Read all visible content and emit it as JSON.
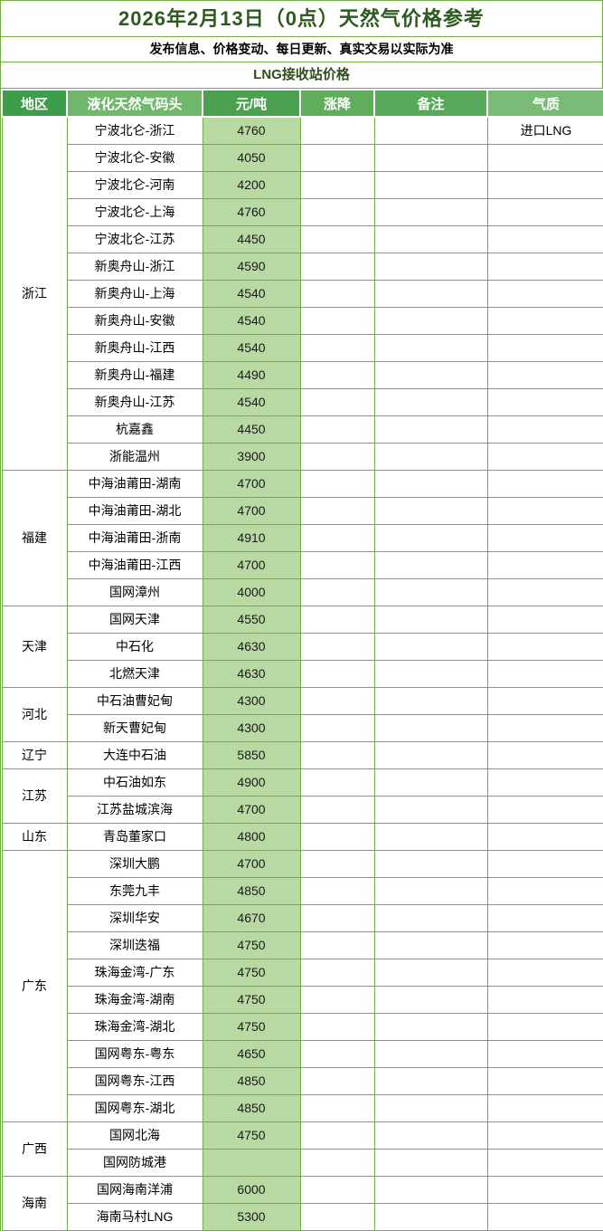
{
  "page": {
    "title": "2026年2月13日（0点）天然气价格参考",
    "subtitle": "发布信息、价格变动、每日更新、真实交易以实际为准",
    "section_title": "LNG接收站价格"
  },
  "colors": {
    "grid_border": "#70ad47",
    "title_text": "#2d5a1e",
    "section_text": "#2e4e1e",
    "price_cell_bg": "#b9d9a2",
    "header_text": "#ffffff"
  },
  "table": {
    "unit_label": "元/吨",
    "columns": [
      {
        "key": "region",
        "label": "地区",
        "color": "#3d9d4b"
      },
      {
        "key": "terminal",
        "label": "液化天然气码头",
        "color": "#71b86d"
      },
      {
        "key": "price",
        "label": "元/吨",
        "color": "#4ca150"
      },
      {
        "key": "change",
        "label": "涨降",
        "color": "#60ae5c"
      },
      {
        "key": "note",
        "label": "备注",
        "color": "#56a958"
      },
      {
        "key": "quality",
        "label": "气质",
        "color": "#79bb74"
      }
    ],
    "regions": [
      {
        "name": "浙江",
        "rows": [
          {
            "terminal": "宁波北仑-浙江",
            "price": "4760",
            "change": "",
            "note": "",
            "quality": "进口LNG"
          },
          {
            "terminal": "宁波北仑-安徽",
            "price": "4050",
            "change": "",
            "note": "",
            "quality": ""
          },
          {
            "terminal": "宁波北仑-河南",
            "price": "4200",
            "change": "",
            "note": "",
            "quality": ""
          },
          {
            "terminal": "宁波北仑-上海",
            "price": "4760",
            "change": "",
            "note": "",
            "quality": ""
          },
          {
            "terminal": "宁波北仑-江苏",
            "price": "4450",
            "change": "",
            "note": "",
            "quality": ""
          },
          {
            "terminal": "新奥舟山-浙江",
            "price": "4590",
            "change": "",
            "note": "",
            "quality": ""
          },
          {
            "terminal": "新奥舟山-上海",
            "price": "4540",
            "change": "",
            "note": "",
            "quality": ""
          },
          {
            "terminal": "新奥舟山-安徽",
            "price": "4540",
            "change": "",
            "note": "",
            "quality": ""
          },
          {
            "terminal": "新奥舟山-江西",
            "price": "4540",
            "change": "",
            "note": "",
            "quality": ""
          },
          {
            "terminal": "新奥舟山-福建",
            "price": "4490",
            "change": "",
            "note": "",
            "quality": ""
          },
          {
            "terminal": "新奥舟山-江苏",
            "price": "4540",
            "change": "",
            "note": "",
            "quality": ""
          },
          {
            "terminal": "杭嘉鑫",
            "price": "4450",
            "change": "",
            "note": "",
            "quality": ""
          },
          {
            "terminal": "浙能温州",
            "price": "3900",
            "change": "",
            "note": "",
            "quality": ""
          }
        ]
      },
      {
        "name": "福建",
        "rows": [
          {
            "terminal": "中海油莆田-湖南",
            "price": "4700",
            "change": "",
            "note": "",
            "quality": ""
          },
          {
            "terminal": "中海油莆田-湖北",
            "price": "4700",
            "change": "",
            "note": "",
            "quality": ""
          },
          {
            "terminal": "中海油莆田-浙南",
            "price": "4910",
            "change": "",
            "note": "",
            "quality": ""
          },
          {
            "terminal": "中海油莆田-江西",
            "price": "4700",
            "change": "",
            "note": "",
            "quality": ""
          },
          {
            "terminal": "国网漳州",
            "price": "4000",
            "change": "",
            "note": "",
            "quality": ""
          }
        ]
      },
      {
        "name": "天津",
        "rows": [
          {
            "terminal": "国网天津",
            "price": "4550",
            "change": "",
            "note": "",
            "quality": ""
          },
          {
            "terminal": "中石化",
            "price": "4630",
            "change": "",
            "note": "",
            "quality": ""
          },
          {
            "terminal": "北燃天津",
            "price": "4630",
            "change": "",
            "note": "",
            "quality": ""
          }
        ]
      },
      {
        "name": "河北",
        "rows": [
          {
            "terminal": "中石油曹妃甸",
            "price": "4300",
            "change": "",
            "note": "",
            "quality": ""
          },
          {
            "terminal": "新天曹妃甸",
            "price": "4300",
            "change": "",
            "note": "",
            "quality": ""
          }
        ]
      },
      {
        "name": "辽宁",
        "rows": [
          {
            "terminal": "大连中石油",
            "price": "5850",
            "change": "",
            "note": "",
            "quality": ""
          }
        ]
      },
      {
        "name": "江苏",
        "rows": [
          {
            "terminal": "中石油如东",
            "price": "4900",
            "change": "",
            "note": "",
            "quality": ""
          },
          {
            "terminal": "江苏盐城滨海",
            "price": "4700",
            "change": "",
            "note": "",
            "quality": ""
          }
        ]
      },
      {
        "name": "山东",
        "rows": [
          {
            "terminal": "青岛董家口",
            "price": "4800",
            "change": "",
            "note": "",
            "quality": ""
          }
        ]
      },
      {
        "name": "广东",
        "rows": [
          {
            "terminal": "深圳大鹏",
            "price": "4700",
            "change": "",
            "note": "",
            "quality": ""
          },
          {
            "terminal": "东莞九丰",
            "price": "4850",
            "change": "",
            "note": "",
            "quality": ""
          },
          {
            "terminal": "深圳华安",
            "price": "4670",
            "change": "",
            "note": "",
            "quality": ""
          },
          {
            "terminal": "深圳迭福",
            "price": "4750",
            "change": "",
            "note": "",
            "quality": ""
          },
          {
            "terminal": "珠海金湾-广东",
            "price": "4750",
            "change": "",
            "note": "",
            "quality": ""
          },
          {
            "terminal": "珠海金湾-湖南",
            "price": "4750",
            "change": "",
            "note": "",
            "quality": ""
          },
          {
            "terminal": "珠海金湾-湖北",
            "price": "4750",
            "change": "",
            "note": "",
            "quality": ""
          },
          {
            "terminal": "国网粤东-粤东",
            "price": "4650",
            "change": "",
            "note": "",
            "quality": ""
          },
          {
            "terminal": "国网粤东-江西",
            "price": "4850",
            "change": "",
            "note": "",
            "quality": ""
          },
          {
            "terminal": "国网粤东-湖北",
            "price": "4850",
            "change": "",
            "note": "",
            "quality": ""
          }
        ]
      },
      {
        "name": "广西",
        "rows": [
          {
            "terminal": "国网北海",
            "price": "4750",
            "change": "",
            "note": "",
            "quality": ""
          },
          {
            "terminal": "国网防城港",
            "price": "",
            "change": "",
            "note": "",
            "quality": ""
          }
        ]
      },
      {
        "name": "海南",
        "rows": [
          {
            "terminal": "国网海南洋浦",
            "price": "6000",
            "change": "",
            "note": "",
            "quality": ""
          },
          {
            "terminal": "海南马村LNG",
            "price": "5300",
            "change": "",
            "note": "",
            "quality": ""
          }
        ]
      }
    ]
  }
}
